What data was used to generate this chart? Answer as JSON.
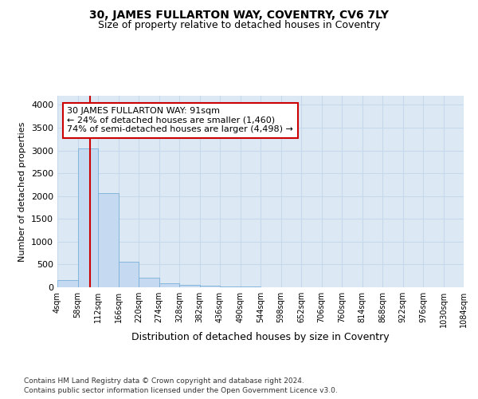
{
  "title_line1": "30, JAMES FULLARTON WAY, COVENTRY, CV6 7LY",
  "title_line2": "Size of property relative to detached houses in Coventry",
  "xlabel": "Distribution of detached houses by size in Coventry",
  "ylabel": "Number of detached properties",
  "footer_line1": "Contains HM Land Registry data © Crown copyright and database right 2024.",
  "footer_line2": "Contains public sector information licensed under the Open Government Licence v3.0.",
  "bin_edges": [
    4,
    58,
    112,
    166,
    220,
    274,
    328,
    382,
    436,
    490,
    544,
    598,
    652,
    706,
    760,
    814,
    868,
    922,
    976,
    1030,
    1084
  ],
  "bin_labels": [
    "4sqm",
    "58sqm",
    "112sqm",
    "166sqm",
    "220sqm",
    "274sqm",
    "328sqm",
    "382sqm",
    "436sqm",
    "490sqm",
    "544sqm",
    "598sqm",
    "652sqm",
    "706sqm",
    "760sqm",
    "814sqm",
    "868sqm",
    "922sqm",
    "976sqm",
    "1030sqm",
    "1084sqm"
  ],
  "bar_heights": [
    150,
    3050,
    2070,
    555,
    215,
    80,
    50,
    30,
    20,
    12,
    8,
    6,
    5,
    0,
    0,
    0,
    0,
    0,
    0,
    0
  ],
  "bar_color": "#c5d9f1",
  "bar_edge_color": "#7ab0d8",
  "property_size": 91,
  "vline_color": "#cc0000",
  "annotation_text": "30 JAMES FULLARTON WAY: 91sqm\n← 24% of detached houses are smaller (1,460)\n74% of semi-detached houses are larger (4,498) →",
  "annotation_box_color": "#cc0000",
  "annotation_bg": "#ffffff",
  "ylim": [
    0,
    4200
  ],
  "yticks": [
    0,
    500,
    1000,
    1500,
    2000,
    2500,
    3000,
    3500,
    4000
  ],
  "grid_color": "#c8d8ec",
  "bg_color": "#dce9f5",
  "title_fontsize": 10,
  "subtitle_fontsize": 9,
  "annotation_fontsize": 8
}
